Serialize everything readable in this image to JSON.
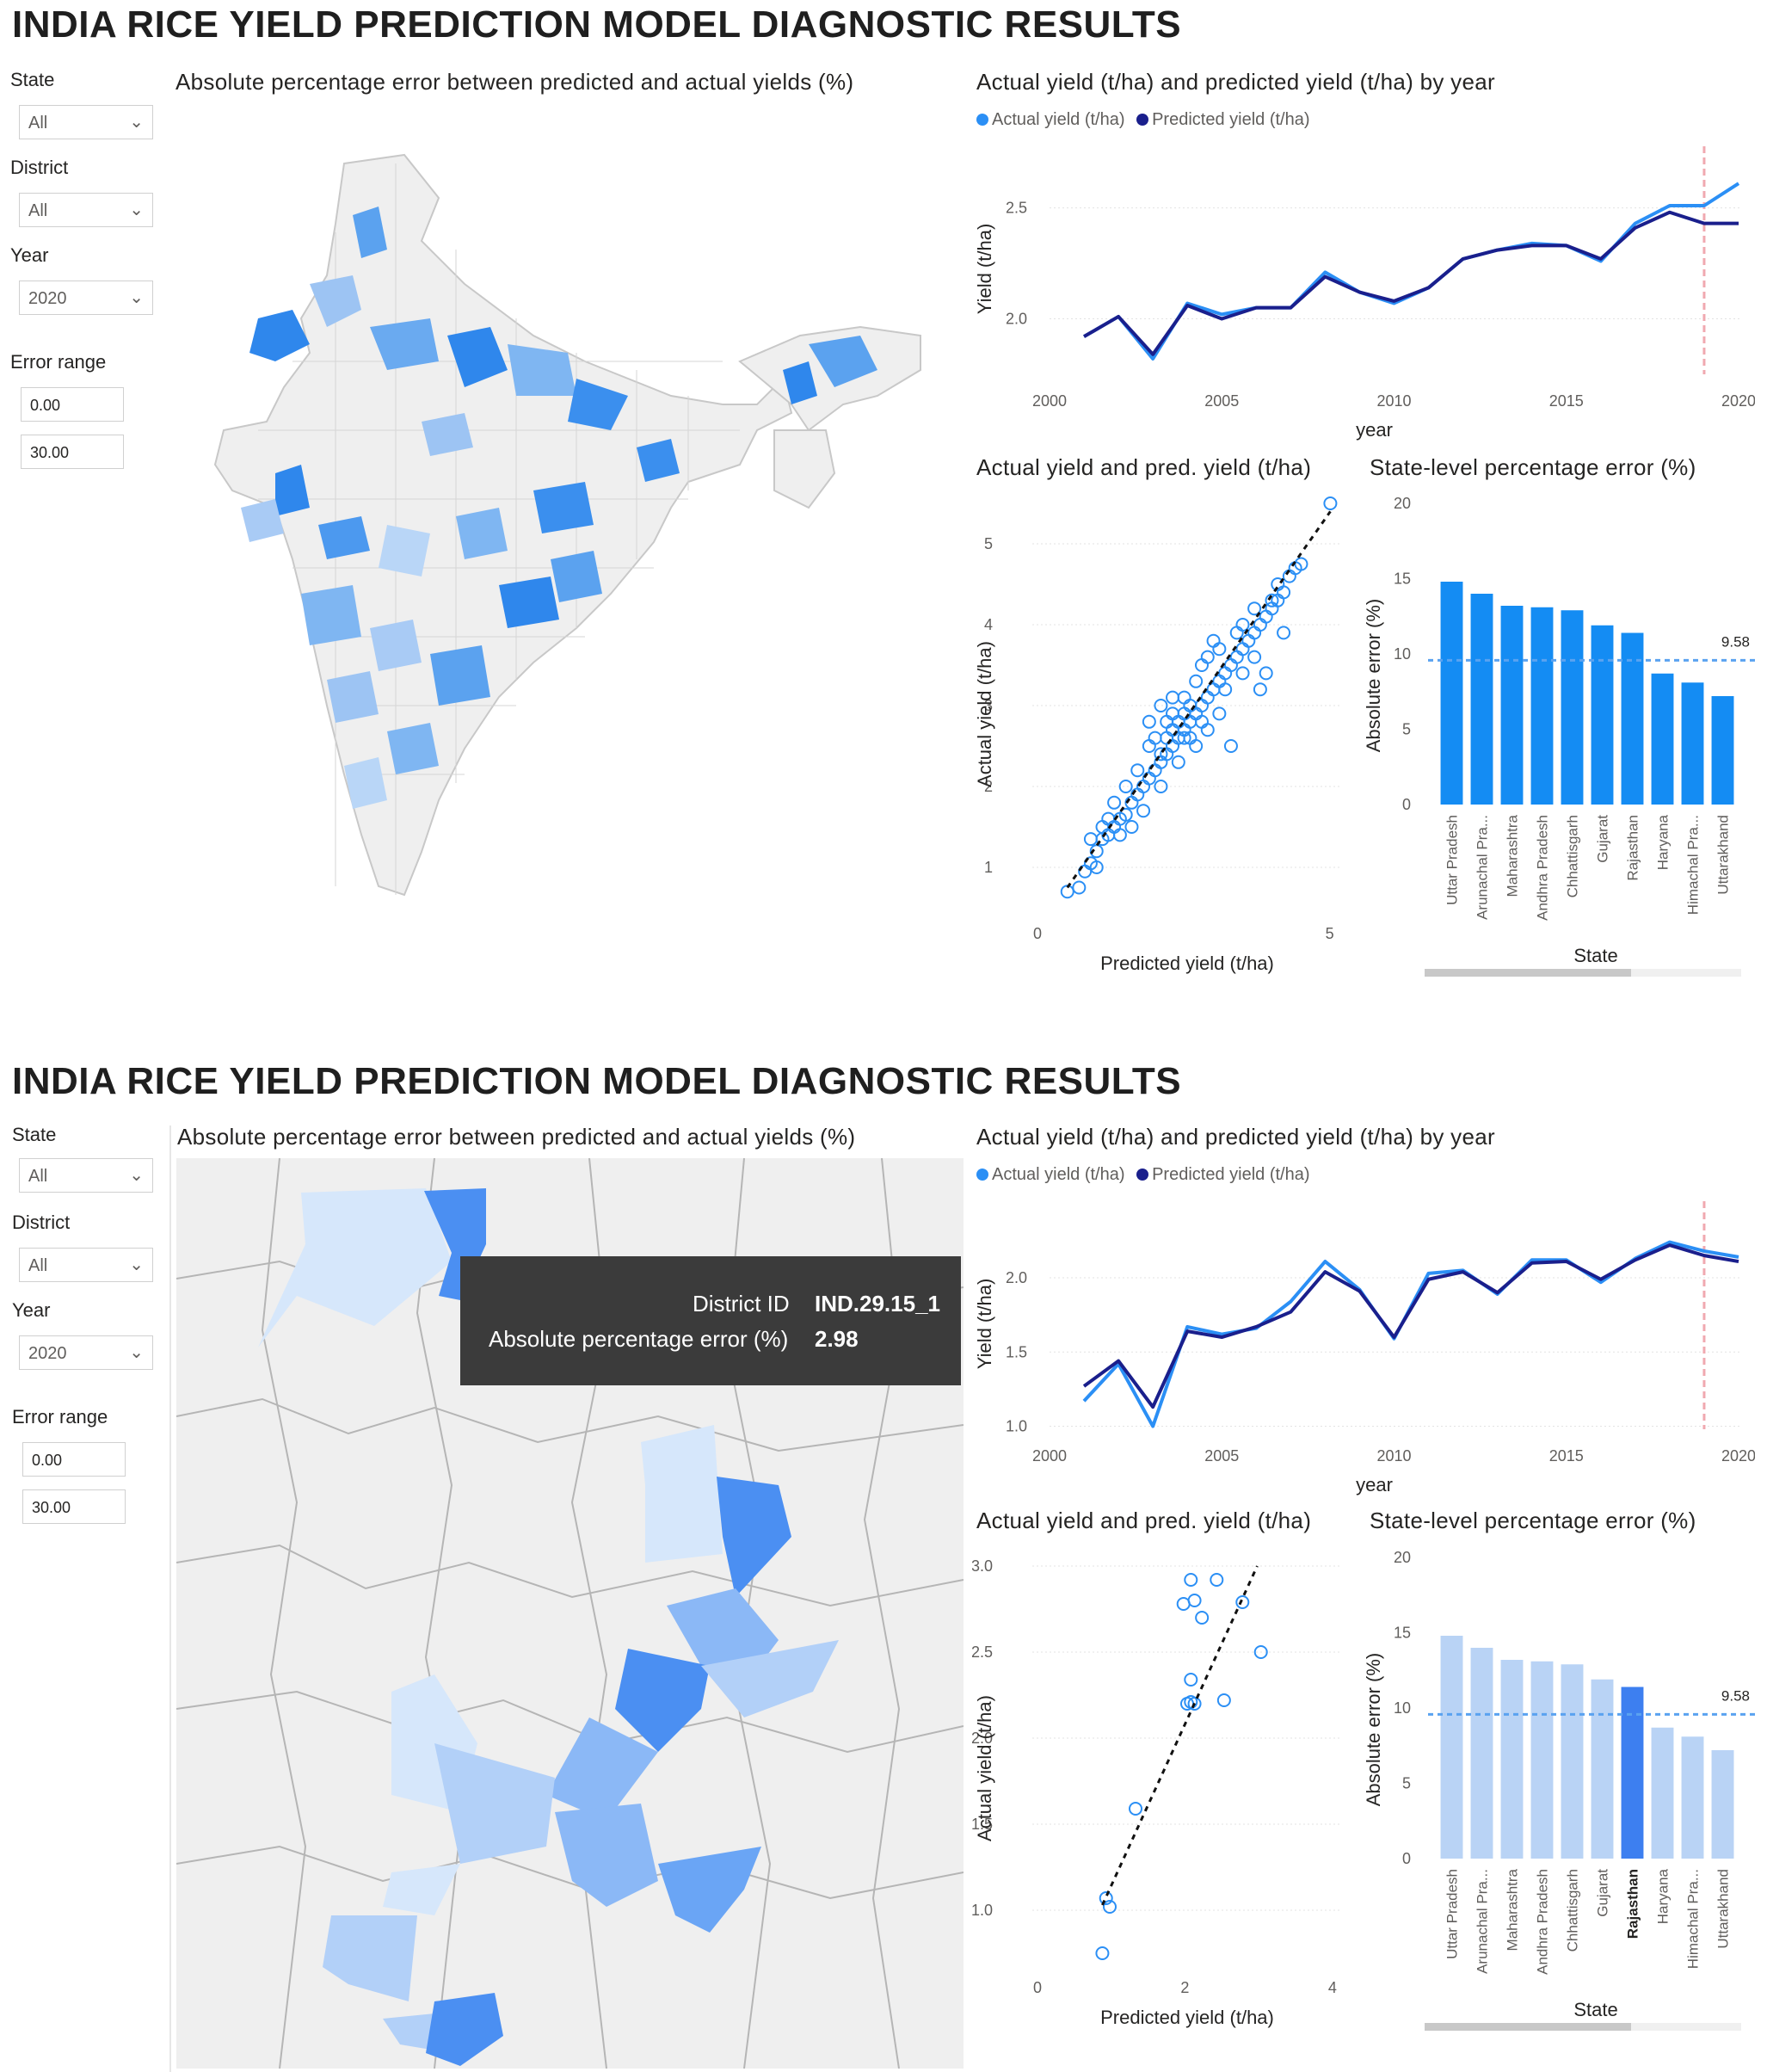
{
  "report_title": "INDIA RICE YIELD PREDICTION MODEL DIAGNOSTIC RESULTS",
  "slicers": {
    "state_label": "State",
    "state_value": "All",
    "district_label": "District",
    "district_value": "All",
    "year_label": "Year",
    "year_value": "2020",
    "error_label": "Error range",
    "error_min": "0.00",
    "error_max": "30.00"
  },
  "map_title": "Absolute percentage error between predicted and actual yields (%)",
  "line_title": "Actual yield (t/ha) and predicted yield (t/ha) by year",
  "legend": {
    "actual": "Actual yield (t/ha)",
    "predicted": "Predicted yield (t/ha)"
  },
  "scatter_title": "Actual yield and pred. yield (t/ha)",
  "bar_title": "State-level percentage error (%)",
  "tooltip": {
    "district_id_label": "District ID",
    "district_id_value": "IND.29.15_1",
    "ape_label": "Absolute percentage error (%)",
    "ape_value": "2.98"
  },
  "colors": {
    "actual": "#2b8ff5",
    "predicted": "#1a1f8c",
    "bar": "#148cf3",
    "bar_dim": "#b9d3f5",
    "bar_highlight": "#3d7ff0",
    "avg_line": "#5aa2f0",
    "ref_line": "#f0a9b0"
  },
  "chart_data": [
    {
      "panel": "top",
      "type": "line",
      "title": "Actual yield (t/ha) and predicted yield (t/ha) by year",
      "xlabel": "year",
      "ylabel": "Yield (t/ha)",
      "x": [
        2001,
        2002,
        2003,
        2004,
        2005,
        2006,
        2007,
        2008,
        2009,
        2010,
        2011,
        2012,
        2013,
        2014,
        2015,
        2016,
        2017,
        2018,
        2019,
        2020
      ],
      "series": [
        {
          "name": "Actual yield (t/ha)",
          "values": [
            1.92,
            2.01,
            1.82,
            2.07,
            2.02,
            2.05,
            2.05,
            2.21,
            2.12,
            2.07,
            2.14,
            2.27,
            2.31,
            2.34,
            2.33,
            2.26,
            2.43,
            2.51,
            2.51,
            2.61
          ]
        },
        {
          "name": "Predicted yield (t/ha)",
          "values": [
            1.92,
            2.01,
            1.84,
            2.06,
            2.0,
            2.05,
            2.05,
            2.19,
            2.12,
            2.08,
            2.14,
            2.27,
            2.31,
            2.33,
            2.33,
            2.27,
            2.41,
            2.48,
            2.43,
            2.43
          ]
        }
      ],
      "xticks": [
        2000,
        2005,
        2010,
        2015,
        2020
      ],
      "yticks": [
        2.0,
        2.5
      ],
      "xlim": [
        2000,
        2020.1
      ],
      "ylim": [
        1.75,
        2.7
      ],
      "ref_x": 2019
    },
    {
      "panel": "top",
      "type": "scatter",
      "title": "Actual yield and pred. yield (t/ha)",
      "xlabel": "Predicted yield (t/ha)",
      "ylabel": "Actual yield (t/ha)",
      "xticks": [
        0,
        5
      ],
      "yticks": [
        1,
        2,
        3,
        4,
        5
      ],
      "xlim": [
        0,
        5.3
      ],
      "ylim": [
        0.5,
        5.5
      ],
      "points": [
        [
          0.6,
          0.7
        ],
        [
          0.8,
          0.75
        ],
        [
          0.9,
          0.95
        ],
        [
          1.0,
          1.05
        ],
        [
          1.1,
          1.2
        ],
        [
          1.2,
          1.35
        ],
        [
          1.3,
          1.4
        ],
        [
          1.4,
          1.5
        ],
        [
          1.5,
          1.6
        ],
        [
          1.6,
          1.65
        ],
        [
          1.7,
          1.8
        ],
        [
          1.8,
          1.9
        ],
        [
          1.9,
          2.0
        ],
        [
          2.0,
          2.1
        ],
        [
          2.1,
          2.2
        ],
        [
          2.2,
          2.3
        ],
        [
          2.3,
          2.4
        ],
        [
          2.4,
          2.5
        ],
        [
          2.5,
          2.6
        ],
        [
          2.6,
          2.7
        ],
        [
          2.7,
          2.8
        ],
        [
          2.8,
          2.9
        ],
        [
          2.9,
          3.0
        ],
        [
          3.0,
          3.1
        ],
        [
          3.1,
          3.2
        ],
        [
          3.2,
          3.3
        ],
        [
          3.3,
          3.4
        ],
        [
          3.4,
          3.5
        ],
        [
          3.5,
          3.6
        ],
        [
          3.6,
          3.7
        ],
        [
          3.7,
          3.8
        ],
        [
          3.8,
          3.9
        ],
        [
          3.9,
          4.0
        ],
        [
          4.0,
          4.1
        ],
        [
          4.1,
          4.2
        ],
        [
          4.2,
          4.3
        ],
        [
          4.3,
          4.4
        ],
        [
          4.5,
          4.7
        ],
        [
          4.6,
          4.75
        ],
        [
          5.1,
          5.5
        ],
        [
          1.0,
          1.35
        ],
        [
          1.2,
          1.5
        ],
        [
          1.4,
          1.8
        ],
        [
          1.5,
          1.4
        ],
        [
          1.6,
          2.0
        ],
        [
          1.8,
          2.2
        ],
        [
          1.9,
          1.7
        ],
        [
          2.0,
          2.5
        ],
        [
          2.1,
          2.6
        ],
        [
          2.2,
          2.0
        ],
        [
          2.3,
          2.8
        ],
        [
          2.4,
          2.9
        ],
        [
          2.5,
          2.3
        ],
        [
          2.6,
          3.1
        ],
        [
          2.7,
          3.0
        ],
        [
          2.8,
          2.5
        ],
        [
          2.9,
          3.5
        ],
        [
          3.0,
          2.7
        ],
        [
          3.1,
          3.8
        ],
        [
          3.2,
          2.9
        ],
        [
          3.3,
          3.2
        ],
        [
          3.4,
          2.5
        ],
        [
          3.5,
          3.9
        ],
        [
          3.6,
          3.4
        ],
        [
          3.8,
          3.6
        ],
        [
          3.9,
          3.2
        ],
        [
          4.0,
          3.4
        ],
        [
          4.1,
          4.3
        ],
        [
          4.2,
          4.5
        ],
        [
          2.0,
          2.8
        ],
        [
          2.2,
          3.0
        ],
        [
          2.4,
          2.7
        ],
        [
          2.6,
          2.6
        ],
        [
          2.8,
          3.3
        ],
        [
          3.0,
          3.6
        ],
        [
          2.5,
          2.8
        ],
        [
          2.3,
          2.6
        ],
        [
          2.6,
          2.9
        ],
        [
          2.7,
          2.6
        ],
        [
          2.4,
          3.1
        ],
        [
          1.7,
          1.5
        ],
        [
          1.3,
          1.6
        ],
        [
          1.1,
          1.0
        ],
        [
          3.2,
          3.7
        ],
        [
          3.6,
          4.0
        ],
        [
          3.8,
          4.2
        ],
        [
          4.3,
          3.9
        ],
        [
          4.4,
          4.6
        ],
        [
          2.2,
          2.4
        ],
        [
          2.9,
          2.8
        ]
      ],
      "fit": [
        [
          0.6,
          0.75
        ],
        [
          5.1,
          5.4
        ]
      ]
    },
    {
      "panel": "top",
      "type": "bar",
      "title": "State-level percentage error (%)",
      "xlabel": "State",
      "ylabel": "Absolute error (%)",
      "categories": [
        "Uttar Pradesh",
        "Arunachal Pra...",
        "Maharashtra",
        "Andhra Pradesh",
        "Chhattisgarh",
        "Gujarat",
        "Rajasthan",
        "Haryana",
        "Himachal Pra...",
        "Uttarakhand"
      ],
      "values": [
        14.8,
        14.0,
        13.2,
        13.1,
        12.9,
        11.9,
        11.4,
        8.7,
        8.1,
        7.2
      ],
      "average": 9.58,
      "average_label": "9.58",
      "yticks": [
        0,
        5,
        10,
        15,
        20
      ],
      "ylim": [
        0,
        20
      ],
      "highlight": null
    },
    {
      "panel": "bottom",
      "type": "line",
      "title": "Actual yield (t/ha) and predicted yield (t/ha) by year",
      "xlabel": "year",
      "ylabel": "Yield (t/ha)",
      "x": [
        2001,
        2002,
        2003,
        2004,
        2005,
        2006,
        2007,
        2008,
        2009,
        2010,
        2011,
        2012,
        2013,
        2014,
        2015,
        2016,
        2017,
        2018,
        2019,
        2020
      ],
      "series": [
        {
          "name": "Actual yield (t/ha)",
          "values": [
            1.17,
            1.42,
            1.0,
            1.67,
            1.62,
            1.66,
            1.84,
            2.11,
            1.92,
            1.59,
            2.03,
            2.05,
            1.89,
            2.12,
            2.12,
            1.97,
            2.13,
            2.24,
            2.18,
            2.14
          ]
        },
        {
          "name": "Predicted yield (t/ha)",
          "values": [
            1.27,
            1.44,
            1.13,
            1.64,
            1.6,
            1.67,
            1.77,
            2.04,
            1.91,
            1.6,
            1.99,
            2.04,
            1.9,
            2.1,
            2.11,
            1.99,
            2.12,
            2.22,
            2.15,
            2.11
          ]
        }
      ],
      "xticks": [
        2000,
        2005,
        2010,
        2015,
        2020
      ],
      "yticks": [
        1.0,
        1.5,
        2.0
      ],
      "xlim": [
        2000,
        2020.1
      ],
      "ylim": [
        0.98,
        2.4
      ],
      "ref_x": 2019
    },
    {
      "panel": "bottom",
      "type": "scatter",
      "title": "Actual yield and pred. yield (t/ha)",
      "xlabel": "Predicted yield (t/ha)",
      "ylabel": "Actual yield (t/ha)",
      "xticks": [
        0,
        2,
        4
      ],
      "yticks": [
        1.0,
        1.5,
        2.0,
        2.5,
        3.0
      ],
      "xlim": [
        0,
        4.2
      ],
      "ylim": [
        0.7,
        3.05
      ],
      "points": [
        [
          0.95,
          0.75
        ],
        [
          1.0,
          1.07
        ],
        [
          1.05,
          1.02
        ],
        [
          1.4,
          1.59
        ],
        [
          2.1,
          2.2
        ],
        [
          2.15,
          2.21
        ],
        [
          2.2,
          2.2
        ],
        [
          2.15,
          2.34
        ],
        [
          2.2,
          2.8
        ],
        [
          2.3,
          2.7
        ],
        [
          2.15,
          2.92
        ],
        [
          2.5,
          2.92
        ],
        [
          2.6,
          2.22
        ],
        [
          2.85,
          2.79
        ],
        [
          3.1,
          2.5
        ],
        [
          2.05,
          2.78
        ]
      ],
      "fit": [
        [
          0.95,
          1.03
        ],
        [
          3.05,
          3.0
        ]
      ]
    },
    {
      "panel": "bottom",
      "type": "bar",
      "title": "State-level percentage error (%)",
      "xlabel": "State",
      "ylabel": "Absolute error (%)",
      "categories": [
        "Uttar Pradesh",
        "Arunachal Pra...",
        "Maharashtra",
        "Andhra Pradesh",
        "Chhattisgarh",
        "Gujarat",
        "Rajasthan",
        "Haryana",
        "Himachal Pra...",
        "Uttarakhand"
      ],
      "values": [
        14.8,
        14.0,
        13.2,
        13.1,
        12.9,
        11.9,
        11.4,
        8.7,
        8.1,
        7.2
      ],
      "average": 9.58,
      "average_label": "9.58",
      "yticks": [
        0,
        5,
        10,
        15,
        20
      ],
      "ylim": [
        0,
        20
      ],
      "highlight": "Rajasthan"
    }
  ]
}
